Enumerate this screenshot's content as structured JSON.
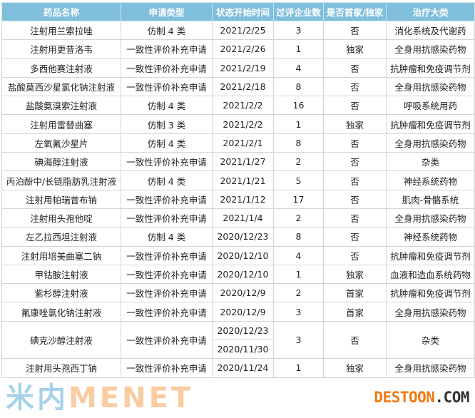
{
  "headers": [
    "药品名称",
    "申请类型",
    "状态开始时间",
    "过评企业数",
    "是否首家/独家",
    "治疗大类"
  ],
  "rows": [
    {
      "name": "注射用兰索拉唑",
      "type": "仿制 4 类",
      "dates": [
        "2021/2/25"
      ],
      "count": "3",
      "first": "否",
      "category": "消化系统及代谢药"
    },
    {
      "name": "注射用更昔洛韦",
      "type": "一致性评价补充申请",
      "dates": [
        "2021/2/26"
      ],
      "count": "1",
      "first": "独家",
      "category": "全身用抗感染药物"
    },
    {
      "name": "多西他赛注射液",
      "type": "一致性评价补充申请",
      "dates": [
        "2021/2/19"
      ],
      "count": "4",
      "first": "否",
      "category": "抗肿瘤和免疫调节剂"
    },
    {
      "name": "盐酸莫西沙星氯化钠注射液",
      "type": "一致性评价补充申请",
      "dates": [
        "2021/2/18"
      ],
      "count": "8",
      "first": "否",
      "category": "全身用抗感染药物"
    },
    {
      "name": "盐酸氨溴索注射液",
      "type": "仿制 4 类",
      "dates": [
        "2021/2/2"
      ],
      "count": "16",
      "first": "否",
      "category": "呼吸系统用药"
    },
    {
      "name": "注射用雷替曲塞",
      "type": "仿制 3 类",
      "dates": [
        "2021/2/2"
      ],
      "count": "1",
      "first": "独家",
      "category": "抗肿瘤和免疫调节剂"
    },
    {
      "name": "左氧氟沙星片",
      "type": "仿制 4 类",
      "dates": [
        "2021/2/1"
      ],
      "count": "8",
      "first": "否",
      "category": "全身用抗感染药物"
    },
    {
      "name": "碘海醇注射液",
      "type": "一致性评价补充申请",
      "dates": [
        "2021/1/27"
      ],
      "count": "2",
      "first": "否",
      "category": "杂类"
    },
    {
      "name": "丙泊酚中/长链脂肪乳注射液",
      "type": "仿制 4 类",
      "dates": [
        "2021/1/21"
      ],
      "count": "5",
      "first": "否",
      "category": "神经系统药物"
    },
    {
      "name": "注射用帕瑞昔布钠",
      "type": "一致性评价补充申请",
      "dates": [
        "2021/1/12"
      ],
      "count": "17",
      "first": "否",
      "category": "肌肉-骨骼系统"
    },
    {
      "name": "注射用头孢他啶",
      "type": "一致性评价补充申请",
      "dates": [
        "2021/1/4"
      ],
      "count": "2",
      "first": "否",
      "category": "全身用抗感染药物"
    },
    {
      "name": "左乙拉西坦注射液",
      "type": "仿制 4 类",
      "dates": [
        "2020/12/23"
      ],
      "count": "8",
      "first": "否",
      "category": "神经系统药物"
    },
    {
      "name": "注射用培美曲塞二钠",
      "type": "一致性评价补充申请",
      "dates": [
        "2020/12/10"
      ],
      "count": "4",
      "first": "否",
      "category": "抗肿瘤和免疫调节剂"
    },
    {
      "name": "甲钴胺注射液",
      "type": "一致性评价补充申请",
      "dates": [
        "2020/12/10"
      ],
      "count": "1",
      "first": "独家",
      "category": "血液和造血系统药物"
    },
    {
      "name": "紫杉醇注射液",
      "type": "一致性评价补充申请",
      "dates": [
        "2020/12/9"
      ],
      "count": "2",
      "first": "首家",
      "category": "抗肿瘤和免疫调节剂"
    },
    {
      "name": "氟康唑氯化钠注射液",
      "type": "一致性评价补充申请",
      "dates": [
        "2020/12/9"
      ],
      "count": "3",
      "first": "首家",
      "category": "全身用抗感染药物"
    },
    {
      "name": "碘克沙醇注射液",
      "type": "一致性评价补充申请",
      "dates": [
        "2020/12/23",
        "2020/11/30"
      ],
      "count": "3",
      "first": "否",
      "category": "杂类"
    },
    {
      "name": "注射用头孢西丁钠",
      "type": "一致性评价补充申请",
      "dates": [
        "2020/11/24"
      ],
      "count": "1",
      "first": "独家",
      "category": "全身用抗感染药物"
    }
  ],
  "watermark": {
    "left": "米内",
    "right": "MENET"
  },
  "logo": {
    "main": "DESTOON",
    "suffix": ".COM"
  }
}
